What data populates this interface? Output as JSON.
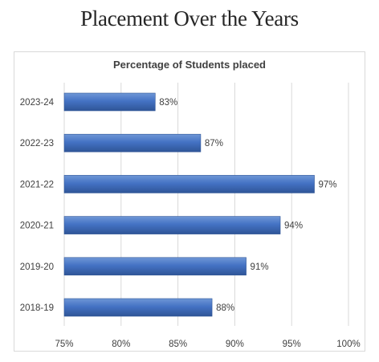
{
  "page": {
    "title": "Placement Over the Years"
  },
  "chart_data": {
    "type": "bar",
    "orientation": "horizontal",
    "title": "Percentage of Students placed",
    "categories": [
      "2023-24",
      "2022-23",
      "2021-22",
      "2020-21",
      "2019-20",
      "2018-19"
    ],
    "values": [
      83,
      87,
      97,
      94,
      91,
      88
    ],
    "data_labels": [
      "83%",
      "87%",
      "97%",
      "94%",
      "91%",
      "88%"
    ],
    "xlim": [
      75,
      100
    ],
    "x_ticks": [
      75,
      80,
      85,
      90,
      95,
      100
    ],
    "x_tick_labels": [
      "75%",
      "80%",
      "85%",
      "90%",
      "95%",
      "100%"
    ],
    "xlabel": "",
    "ylabel": "",
    "grid": "vertical",
    "legend": "none",
    "bar_color": "#4472c4",
    "bar_color_light": "#6f97d6",
    "bar_color_dark": "#2f5597"
  }
}
